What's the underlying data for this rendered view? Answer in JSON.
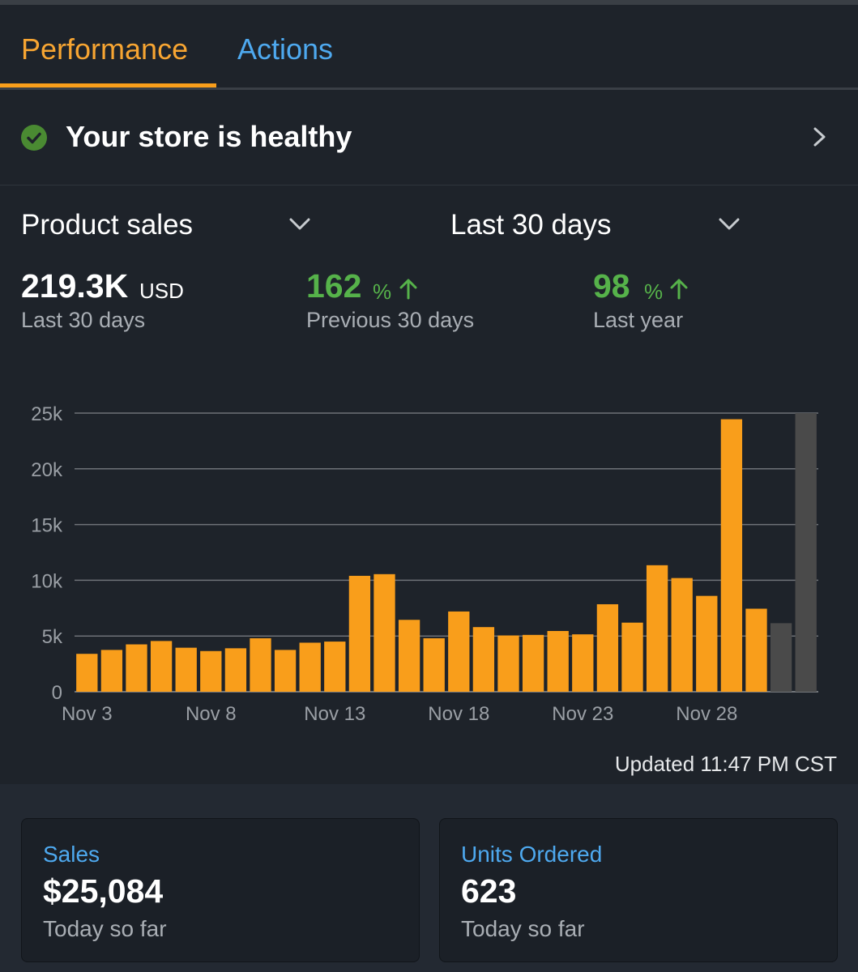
{
  "tabs": {
    "performance": "Performance",
    "actions": "Actions"
  },
  "health": {
    "text": "Your store is healthy"
  },
  "selectors": {
    "metric": "Product sales",
    "period": "Last 30 days"
  },
  "stats": {
    "total": {
      "value": "219.3K",
      "unit": "USD",
      "label": "Last 30 days"
    },
    "prev": {
      "value": "162",
      "unit": "%",
      "label": "Previous 30 days"
    },
    "year": {
      "value": "98",
      "unit": "%",
      "label": "Last year"
    }
  },
  "colors": {
    "accent": "#f99e1b",
    "link": "#4ea9ef",
    "positive": "#56b24a",
    "muted_bar": "#4a4a4a"
  },
  "chart_data": {
    "type": "bar",
    "title": "",
    "xlabel": "",
    "ylabel": "",
    "ylim": [
      0,
      25000
    ],
    "yticks": [
      0,
      5000,
      10000,
      15000,
      20000,
      25000
    ],
    "ytick_labels": [
      "0",
      "5k",
      "10k",
      "15k",
      "20k",
      "25k"
    ],
    "categories": [
      "Nov 3",
      "Nov 4",
      "Nov 5",
      "Nov 6",
      "Nov 7",
      "Nov 8",
      "Nov 9",
      "Nov 10",
      "Nov 11",
      "Nov 12",
      "Nov 13",
      "Nov 14",
      "Nov 15",
      "Nov 16",
      "Nov 17",
      "Nov 18",
      "Nov 19",
      "Nov 20",
      "Nov 21",
      "Nov 22",
      "Nov 23",
      "Nov 24",
      "Nov 25",
      "Nov 26",
      "Nov 27",
      "Nov 28",
      "Nov 29",
      "Nov 30",
      "Dec 1",
      "Dec 2"
    ],
    "xtick_labels": [
      "Nov 3",
      "Nov 8",
      "Nov 13",
      "Nov 18",
      "Nov 23",
      "Nov 28"
    ],
    "values": [
      3400,
      3750,
      4250,
      4550,
      3950,
      3650,
      3900,
      4800,
      3750,
      4400,
      4500,
      10400,
      10550,
      6450,
      4800,
      7200,
      5800,
      5050,
      5100,
      5450,
      5150,
      7850,
      6200,
      11350,
      10200,
      8600,
      24450,
      7450,
      6150,
      25000
    ],
    "highlighted": [
      true,
      true,
      true,
      true,
      true,
      true,
      true,
      true,
      true,
      true,
      true,
      true,
      true,
      true,
      true,
      true,
      true,
      true,
      true,
      true,
      true,
      true,
      true,
      true,
      true,
      true,
      true,
      true,
      false,
      false
    ],
    "grid": true
  },
  "updated": "Updated 11:47 PM CST",
  "cards": [
    {
      "title": "Sales",
      "value": "$25,084",
      "sub": "Today so far"
    },
    {
      "title": "Units Ordered",
      "value": "623",
      "sub": "Today so far"
    }
  ]
}
